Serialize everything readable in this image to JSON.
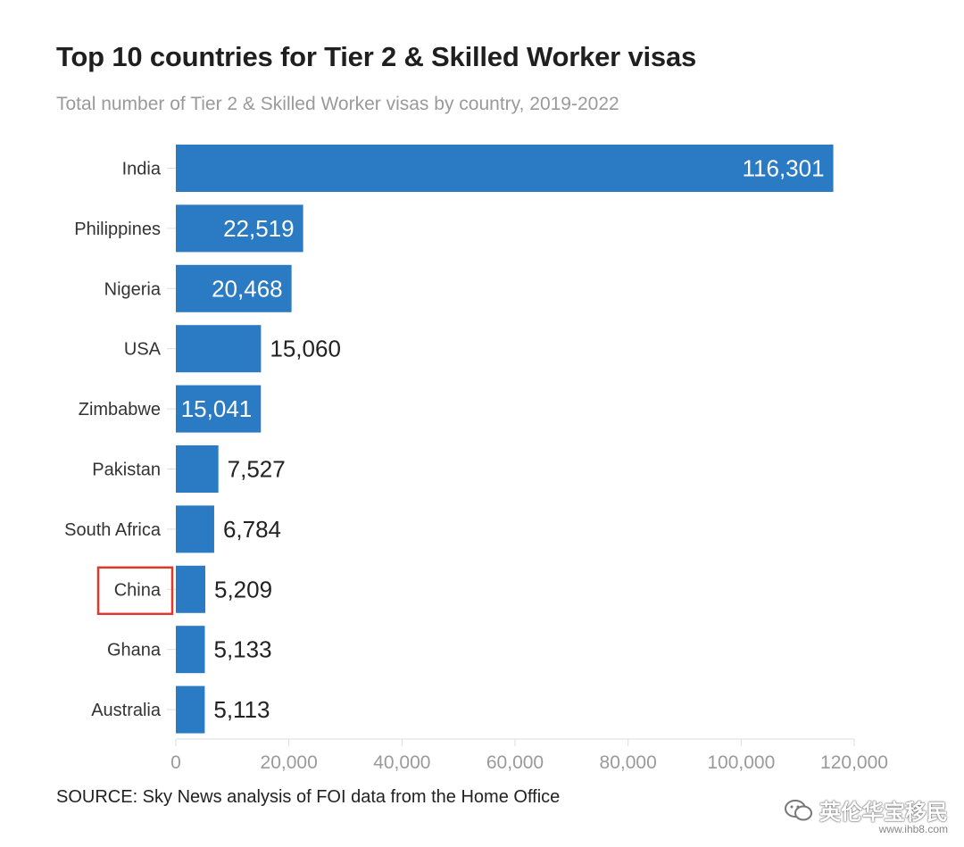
{
  "title": "Top 10 countries for Tier 2 & Skilled Worker visas",
  "subtitle": "Total number of Tier 2 & Skilled Worker visas by country, 2019-2022",
  "source": "SOURCE: Sky News analysis of FOI data from the Home Office",
  "watermark": {
    "text": "英伦华宝移民",
    "url": "www.ihb8.com"
  },
  "colors": {
    "bar": "#2b7bc4",
    "highlight_box": "#e0392b",
    "axis_text": "#9a9a9a",
    "label_text": "#333333"
  },
  "chart_data": {
    "type": "bar",
    "orientation": "horizontal",
    "categories": [
      "India",
      "Philippines",
      "Nigeria",
      "USA",
      "Zimbabwe",
      "Pakistan",
      "South Africa",
      "China",
      "Ghana",
      "Australia"
    ],
    "values": [
      116301,
      22519,
      20468,
      15060,
      15041,
      7527,
      6784,
      5209,
      5133,
      5113
    ],
    "value_labels": [
      "116,301",
      "22,519",
      "20,468",
      "15,060",
      "15,041",
      "7,527",
      "6,784",
      "5,209",
      "5,133",
      "5,113"
    ],
    "value_label_inside": [
      true,
      true,
      true,
      false,
      true,
      false,
      false,
      false,
      false,
      false
    ],
    "highlighted_category": "China",
    "xlim": [
      0,
      120000
    ],
    "xticks": [
      0,
      20000,
      40000,
      60000,
      80000,
      100000,
      120000
    ],
    "xtick_labels": [
      "0",
      "20,000",
      "40,000",
      "60,000",
      "80,000",
      "100,000",
      "120,000"
    ],
    "grid": false
  }
}
